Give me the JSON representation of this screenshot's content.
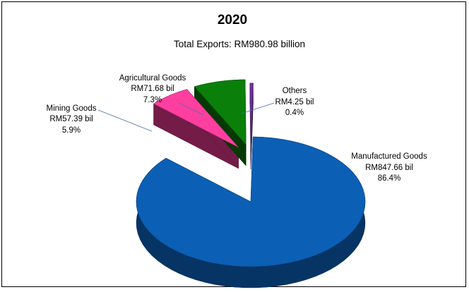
{
  "chart_data": {
    "type": "pie",
    "title": "2020",
    "subtitle": "Total Exports: RM980.98 billion",
    "slices": [
      {
        "name": "Manufactured Goods",
        "value_label": "RM847.66 bil",
        "percent_label": "86.4%",
        "value": 847.66,
        "percent": 86.4,
        "color": "#0b5fb5",
        "exploded": false
      },
      {
        "name": "Mining Goods",
        "value_label": "RM57.39 bil",
        "percent_label": "5.9%",
        "value": 57.39,
        "percent": 5.9,
        "color": "#ff3fa0",
        "exploded": true
      },
      {
        "name": "Agricultural Goods",
        "value_label": "RM71.68 bil",
        "percent_label": "7.3%",
        "value": 71.68,
        "percent": 7.3,
        "color": "#0a7f0a",
        "exploded": true
      },
      {
        "name": "Others",
        "value_label": "RM4.25 bil",
        "percent_label": "0.4%",
        "value": 4.25,
        "percent": 0.4,
        "color": "#7030a0",
        "exploded": true
      }
    ],
    "style": "3d-exploded-pie",
    "legend": "none"
  }
}
